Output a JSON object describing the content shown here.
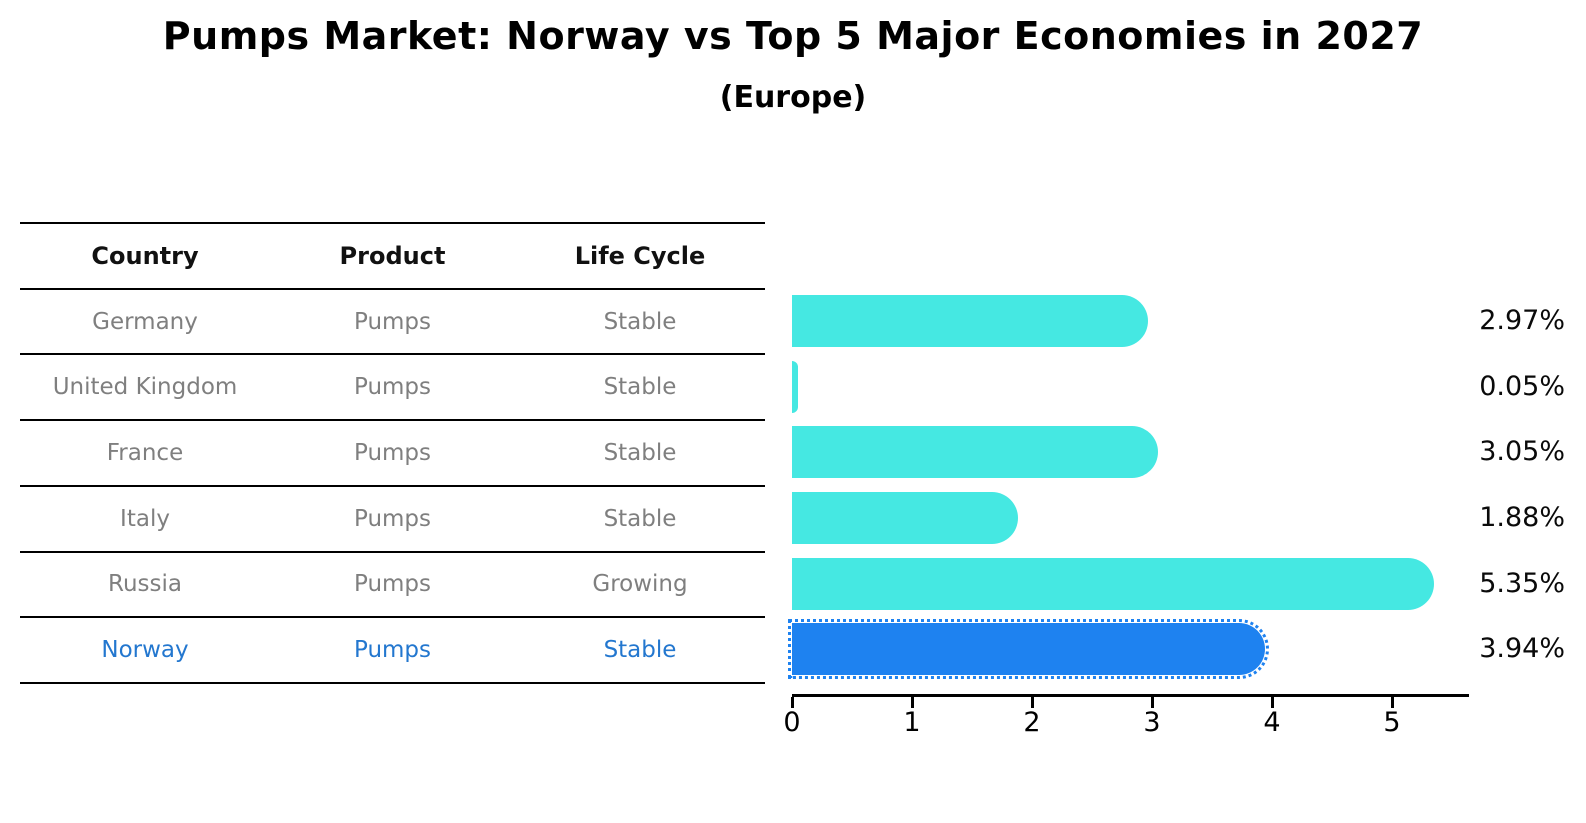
{
  "chart_data": {
    "type": "bar",
    "orientation": "horizontal",
    "title": "Pumps Market: Norway vs Top 5 Major Economies in 2027",
    "subtitle": "(Europe)",
    "categories": [
      "Germany",
      "United Kingdom",
      "France",
      "Italy",
      "Russia",
      "Norway"
    ],
    "values": [
      2.97,
      0.05,
      3.05,
      1.88,
      5.35,
      3.94
    ],
    "value_labels": [
      "2.97%",
      "0.05%",
      "3.05%",
      "1.88%",
      "5.35%",
      "3.94%"
    ],
    "unit": "%",
    "xticks": [
      0,
      1,
      2,
      3,
      4,
      5
    ],
    "xlim": [
      0,
      5.63
    ],
    "grid": false,
    "legend": "none",
    "bar_color": "#45E8E2",
    "highlight_bar_color": "#1E82F0",
    "highlight_index": 5,
    "highlight_category": "Norway"
  },
  "table": {
    "headers": [
      "Country",
      "Product",
      "Life Cycle"
    ],
    "rows": [
      {
        "country": "Germany",
        "product": "Pumps",
        "life_cycle": "Stable",
        "highlight": false
      },
      {
        "country": "United Kingdom",
        "product": "Pumps",
        "life_cycle": "Stable",
        "highlight": false
      },
      {
        "country": "France",
        "product": "Pumps",
        "life_cycle": "Stable",
        "highlight": false
      },
      {
        "country": "Italy",
        "product": "Pumps",
        "life_cycle": "Stable",
        "highlight": false
      },
      {
        "country": "Russia",
        "product": "Pumps",
        "life_cycle": "Growing",
        "highlight": false
      },
      {
        "country": "Norway",
        "product": "Pumps",
        "life_cycle": "Stable",
        "highlight": true
      }
    ],
    "text_color": "#7f7f7f",
    "header_color": "#111111",
    "highlight_text_color": "#2377CF"
  }
}
